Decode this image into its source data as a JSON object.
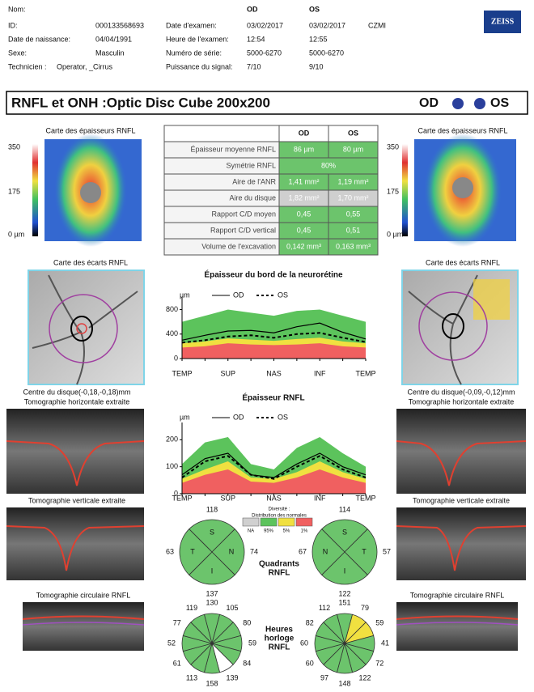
{
  "header": {
    "name_label": "Nom:",
    "eye_od": "OD",
    "eye_os": "OS",
    "logo": "ZEISS",
    "site": "CZMI",
    "fields": [
      {
        "label": "ID:",
        "value": "000133568693"
      },
      {
        "label": "Date de naissance:",
        "value": "04/04/1991"
      },
      {
        "label": "Sexe:",
        "value": "Masculin"
      },
      {
        "label": "Technicien :",
        "value": "Operator, _Cirrus"
      }
    ],
    "exam": [
      {
        "label": "Date d'examen:",
        "od": "03/02/2017",
        "os": "03/02/2017"
      },
      {
        "label": "Heure de l'examen:",
        "od": "12:54",
        "os": "12:55"
      },
      {
        "label": "Numéro de série:",
        "od": "5000-6270",
        "os": "5000-6270"
      },
      {
        "label": "Puissance du signal:",
        "od": "7/10",
        "os": "9/10"
      }
    ]
  },
  "title": {
    "text": "RNFL et ONH :Optic Disc Cube 200x200",
    "od": "OD",
    "os": "OS"
  },
  "table": {
    "columns": [
      "OD",
      "OS"
    ],
    "rows": [
      [
        "Épaisseur moyenne RNFL",
        "86 µm",
        "80 µm"
      ],
      [
        "Symétrie RNFL",
        "80%"
      ],
      [
        "Aire de l'ANR",
        "1,41 mm²",
        "1,19 mm²"
      ],
      [
        "Aire du disque",
        "1,82 mm²",
        "1,70 mm²"
      ],
      [
        "Rapport C/D moyen",
        "0,45",
        "0,55"
      ],
      [
        "Rapport C/D vertical",
        "0,45",
        "0,51"
      ],
      [
        "Volume de l'excavation",
        "0,142 mm³",
        "0,163 mm³"
      ]
    ],
    "colors": [
      "#6cc46c",
      "#6cc46c",
      "#6cc46c",
      "#cfcfcf",
      "#6cc46c",
      "#6cc46c",
      "#6cc46c"
    ]
  },
  "images": {
    "thickness_map": "Carte des épaisseurs RNFL",
    "scale": [
      "350",
      "175",
      "0 µm"
    ],
    "deviation_map": "Carte des écarts RNFL",
    "disc_center_od": "Centre du disque(-0,18,-0,18)mm",
    "disc_center_os": "Centre du disque(-0,09,-0,12)mm",
    "horizontal": "Tomographie horizontale extraite",
    "vertical": "Tomographie verticale extraite",
    "circular": "Tomographie circulaire RNFL"
  },
  "chart_data": [
    {
      "type": "line",
      "title": "Épaisseur du bord de la neurorétine",
      "unit": "µm",
      "categories": [
        "TEMP",
        null,
        "SUP",
        null,
        "NAS",
        null,
        "INF",
        null,
        "TEMP"
      ],
      "ylim": [
        0,
        900
      ],
      "yticks": [
        0,
        400,
        800
      ],
      "bands": [
        {
          "color": "#5cc35c",
          "values": [
            600,
            700,
            800,
            750,
            700,
            780,
            800,
            700,
            600
          ]
        },
        {
          "color": "#f0e040",
          "values": [
            250,
            280,
            330,
            310,
            290,
            320,
            340,
            280,
            250
          ]
        },
        {
          "color": "#f06060",
          "values": [
            180,
            200,
            250,
            230,
            220,
            230,
            250,
            200,
            180
          ]
        }
      ],
      "series": [
        {
          "name": "OD",
          "color": "#000000",
          "dash": false,
          "values": [
            300,
            380,
            450,
            460,
            420,
            520,
            580,
            430,
            320
          ]
        },
        {
          "name": "OS",
          "color": "#000000",
          "dash": true,
          "values": [
            260,
            300,
            360,
            380,
            340,
            400,
            420,
            340,
            270
          ]
        }
      ]
    },
    {
      "type": "line",
      "title": "Épaisseur RNFL",
      "unit": "µm",
      "categories": [
        "TEMP",
        null,
        "SUP",
        null,
        "NAS",
        null,
        "INF",
        null,
        "TEMP"
      ],
      "ylim": [
        0,
        240
      ],
      "yticks": [
        0,
        100,
        200
      ],
      "bands": [
        {
          "color": "#5cc35c",
          "values": [
            110,
            190,
            210,
            110,
            90,
            170,
            210,
            150,
            100
          ]
        },
        {
          "color": "#f0e040",
          "values": [
            55,
            90,
            120,
            60,
            55,
            80,
            120,
            80,
            55
          ]
        },
        {
          "color": "#f06060",
          "values": [
            40,
            70,
            90,
            45,
            40,
            60,
            90,
            60,
            40
          ]
        }
      ],
      "series": [
        {
          "name": "OD",
          "color": "#000000",
          "dash": false,
          "values": [
            70,
            130,
            150,
            70,
            60,
            110,
            150,
            100,
            70
          ]
        },
        {
          "name": "OS",
          "color": "#000000",
          "dash": true,
          "values": [
            60,
            120,
            140,
            70,
            55,
            100,
            140,
            90,
            60
          ]
        }
      ]
    }
  ],
  "distribution_legend": {
    "title": [
      "Diversité :",
      "Distribution des normales"
    ],
    "items": [
      {
        "label": "NA",
        "color": "#d0d0d0"
      },
      {
        "label": "95%",
        "color": "#5cc35c"
      },
      {
        "label": "5%",
        "color": "#f0e040"
      },
      {
        "label": "1%",
        "color": "#f06060"
      }
    ]
  },
  "quadrants": {
    "label": [
      "Quadrants",
      "RNFL"
    ],
    "od": [
      {
        "letter": "S",
        "value": 118,
        "color": "#6cc46c"
      },
      {
        "letter": "N",
        "value": 74,
        "color": "#6cc46c"
      },
      {
        "letter": "I",
        "value": 137,
        "color": "#6cc46c"
      },
      {
        "letter": "T",
        "value": 63,
        "color": "#6cc46c"
      }
    ],
    "os": [
      {
        "letter": "S",
        "value": 114,
        "color": "#6cc46c"
      },
      {
        "letter": "T",
        "value": 57,
        "color": "#6cc46c"
      },
      {
        "letter": "I",
        "value": 122,
        "color": "#6cc46c"
      },
      {
        "letter": "N",
        "value": 67,
        "color": "#6cc46c"
      }
    ]
  },
  "clock_hours": {
    "label": [
      "Heures",
      "horloge",
      "RNFL"
    ],
    "od": {
      "values": [
        130,
        105,
        80,
        59,
        84,
        139,
        158,
        113,
        61,
        52,
        77,
        119
      ],
      "colors": [
        "#6cc46c",
        "#6cc46c",
        "#6cc46c",
        "#6cc46c",
        "#6cc46c",
        "#ffffff",
        "#6cc46c",
        "#6cc46c",
        "#6cc46c",
        "#6cc46c",
        "#6cc46c",
        "#6cc46c"
      ]
    },
    "os": {
      "values": [
        151,
        79,
        59,
        41,
        72,
        122,
        148,
        97,
        60,
        60,
        82,
        112
      ],
      "colors": [
        "#6cc46c",
        "#f0e040",
        "#f0e040",
        "#6cc46c",
        "#6cc46c",
        "#6cc46c",
        "#6cc46c",
        "#6cc46c",
        "#6cc46c",
        "#6cc46c",
        "#6cc46c",
        "#6cc46c"
      ]
    }
  }
}
